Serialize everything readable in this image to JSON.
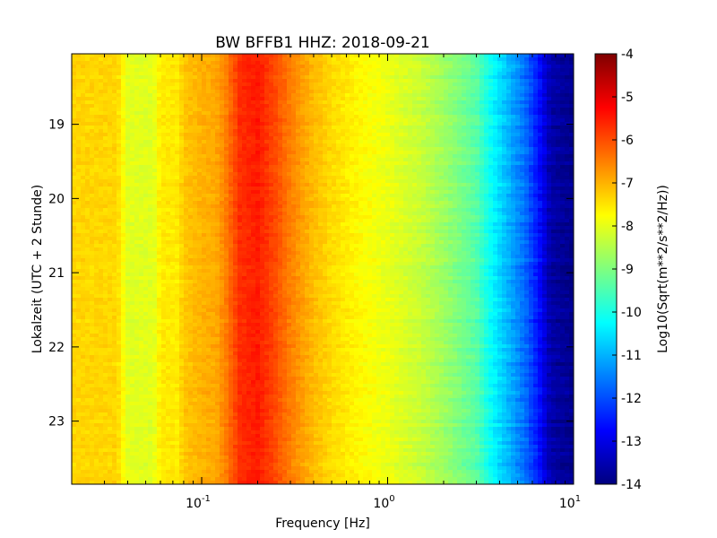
{
  "chart_data": {
    "type": "heatmap",
    "title": "BW BFFB1 HHZ: 2018-09-21",
    "xlabel": "Frequency [Hz]",
    "ylabel": "Lokalzeit (UTC + 2 Stunde)",
    "colorbar_label": "Log10(Sqrt(m**2/s**2/Hz))",
    "x_scale": "log",
    "xlim": [
      0.02,
      10
    ],
    "ylim": [
      23.85,
      18.05
    ],
    "x_ticks": [
      {
        "value": 0.1,
        "base": "10",
        "exp": "-1"
      },
      {
        "value": 1,
        "base": "10",
        "exp": "0"
      },
      {
        "value": 10,
        "base": "10",
        "exp": "1"
      }
    ],
    "y_ticks": [
      {
        "value": 19,
        "label": "19"
      },
      {
        "value": 20,
        "label": "20"
      },
      {
        "value": 21,
        "label": "21"
      },
      {
        "value": 22,
        "label": "22"
      },
      {
        "value": 23,
        "label": "23"
      }
    ],
    "colorbar": {
      "range": [
        -14,
        -4
      ],
      "ticks": [
        "-4",
        "-5",
        "-6",
        "-7",
        "-8",
        "-9",
        "-10",
        "-11",
        "-12",
        "-13",
        "-14"
      ],
      "colormap": [
        "#00007f",
        "#0000ff",
        "#007fff",
        "#00ffff",
        "#7fff7f",
        "#ffff00",
        "#ff7f00",
        "#ff0000",
        "#7f0000"
      ]
    },
    "spectrum_profile": {
      "frequency_hz": [
        0.02,
        0.035,
        0.04,
        0.055,
        0.06,
        0.075,
        0.08,
        0.1,
        0.12,
        0.135,
        0.16,
        0.2,
        0.25,
        0.3,
        0.4,
        0.5,
        0.7,
        1.0,
        1.5,
        2.0,
        3.0,
        3.5,
        4.5,
        5.5,
        6.5,
        7.5,
        10
      ],
      "log10_amplitude": [
        -7.35,
        -7.35,
        -8.05,
        -8.05,
        -7.55,
        -7.55,
        -7.2,
        -7.0,
        -6.9,
        -6.5,
        -5.7,
        -5.5,
        -6.0,
        -6.5,
        -7.1,
        -7.4,
        -7.7,
        -7.95,
        -8.3,
        -8.7,
        -9.4,
        -10.1,
        -11.0,
        -11.7,
        -12.6,
        -13.6,
        -13.9
      ]
    }
  }
}
